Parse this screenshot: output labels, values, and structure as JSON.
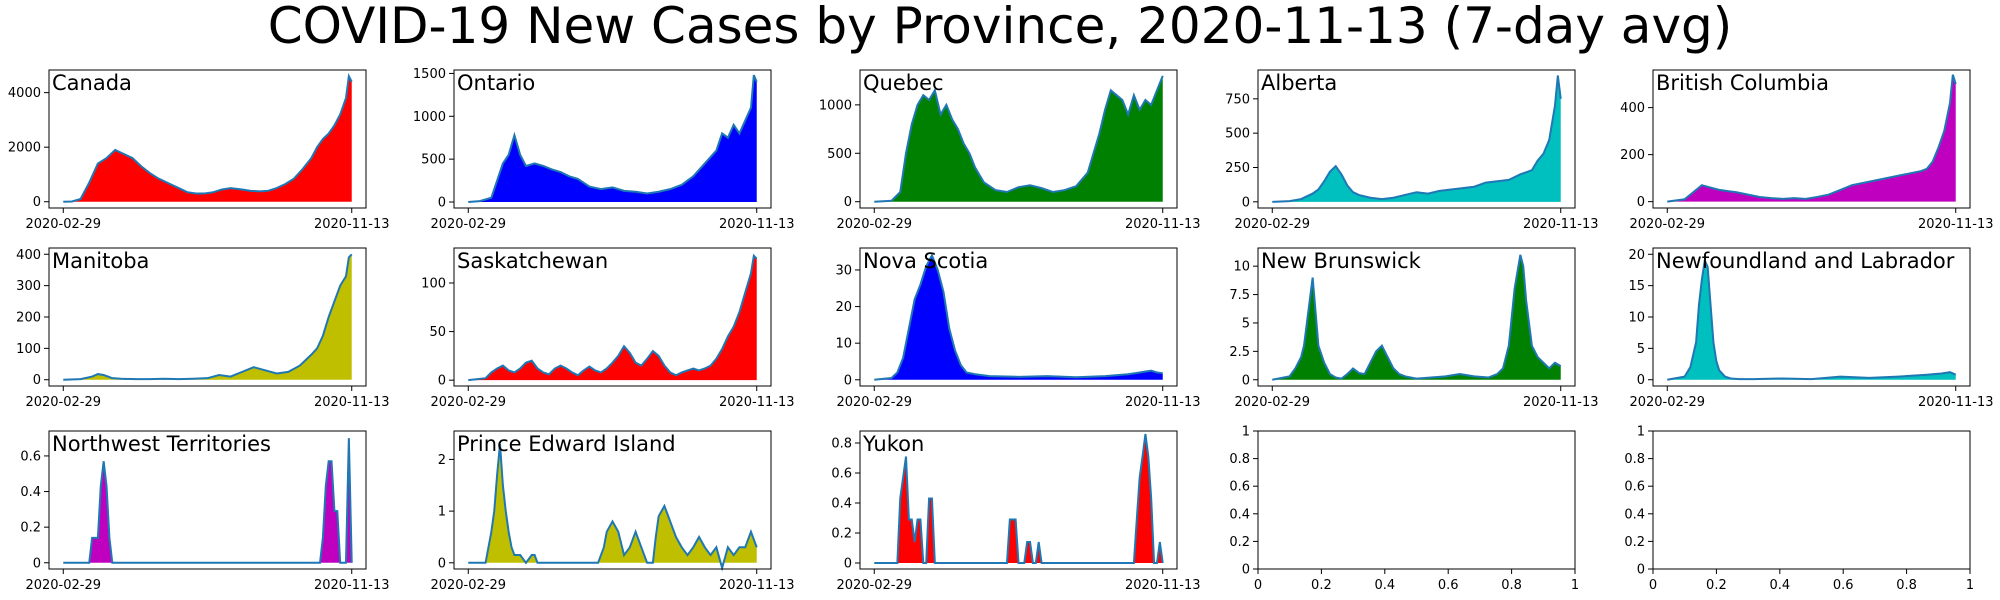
{
  "figure": {
    "title": "COVID-19 New Cases by Province, 2020-11-13 (7-day avg)",
    "colors": {
      "line": "#1f77b4",
      "frame": "#000000",
      "background": "#ffffff"
    }
  },
  "chart_data": [
    {
      "type": "area",
      "label": "Canada",
      "fill": "#ff0000",
      "xlabels": [
        "2020-02-29",
        "2020-11-13"
      ],
      "ylim": [
        -230,
        4830
      ],
      "yticks": [
        0,
        2000,
        4000
      ],
      "x": [
        0,
        0.03,
        0.06,
        0.09,
        0.12,
        0.15,
        0.18,
        0.21,
        0.24,
        0.27,
        0.3,
        0.33,
        0.36,
        0.4,
        0.43,
        0.46,
        0.49,
        0.52,
        0.55,
        0.58,
        0.62,
        0.65,
        0.68,
        0.71,
        0.74,
        0.77,
        0.8,
        0.83,
        0.86,
        0.88,
        0.9,
        0.92,
        0.94,
        0.96,
        0.98,
        0.99,
        1.0
      ],
      "y": [
        0,
        10,
        100,
        700,
        1400,
        1600,
        1900,
        1750,
        1600,
        1300,
        1050,
        850,
        700,
        500,
        350,
        300,
        300,
        350,
        450,
        500,
        450,
        400,
        380,
        400,
        500,
        650,
        850,
        1200,
        1600,
        2000,
        2300,
        2500,
        2800,
        3200,
        3800,
        4600,
        4400
      ]
    },
    {
      "type": "area",
      "label": "Ontario",
      "fill": "#0000ff",
      "xlabels": [
        "2020-02-29",
        "2020-11-13"
      ],
      "ylim": [
        -70,
        1540
      ],
      "yticks": [
        0,
        500,
        1000,
        1500
      ],
      "x": [
        0,
        0.04,
        0.08,
        0.1,
        0.12,
        0.14,
        0.16,
        0.18,
        0.2,
        0.23,
        0.26,
        0.29,
        0.32,
        0.35,
        0.38,
        0.42,
        0.46,
        0.5,
        0.54,
        0.58,
        0.62,
        0.66,
        0.7,
        0.74,
        0.78,
        0.82,
        0.86,
        0.88,
        0.9,
        0.92,
        0.94,
        0.96,
        0.98,
        0.99,
        1.0
      ],
      "y": [
        0,
        10,
        50,
        250,
        450,
        550,
        780,
        550,
        420,
        450,
        420,
        380,
        350,
        300,
        270,
        180,
        150,
        170,
        130,
        120,
        100,
        120,
        150,
        200,
        300,
        450,
        600,
        800,
        750,
        900,
        800,
        950,
        1100,
        1480,
        1400
      ]
    },
    {
      "type": "area",
      "label": "Quebec",
      "fill": "#008000",
      "xlabels": [
        "2020-02-29",
        "2020-11-13"
      ],
      "ylim": [
        -65,
        1360
      ],
      "yticks": [
        0,
        500,
        1000
      ],
      "x": [
        0,
        0.06,
        0.09,
        0.11,
        0.13,
        0.15,
        0.17,
        0.19,
        0.21,
        0.23,
        0.25,
        0.27,
        0.29,
        0.31,
        0.33,
        0.35,
        0.38,
        0.42,
        0.46,
        0.5,
        0.54,
        0.58,
        0.62,
        0.66,
        0.7,
        0.74,
        0.76,
        0.78,
        0.8,
        0.82,
        0.84,
        0.86,
        0.88,
        0.9,
        0.92,
        0.94,
        0.96,
        0.98,
        1.0
      ],
      "y": [
        0,
        10,
        100,
        500,
        800,
        1000,
        1100,
        1050,
        1150,
        900,
        1000,
        850,
        750,
        600,
        500,
        350,
        200,
        120,
        100,
        150,
        170,
        140,
        100,
        120,
        160,
        300,
        500,
        700,
        950,
        1150,
        1100,
        1050,
        900,
        1100,
        950,
        1050,
        1000,
        1150,
        1300
      ]
    },
    {
      "type": "area",
      "label": "Alberta",
      "fill": "#00bfbf",
      "xlabels": [
        "2020-02-29",
        "2020-11-13"
      ],
      "ylim": [
        -45,
        960
      ],
      "yticks": [
        0,
        250,
        500,
        750
      ],
      "x": [
        0,
        0.06,
        0.1,
        0.14,
        0.16,
        0.18,
        0.2,
        0.22,
        0.24,
        0.26,
        0.28,
        0.3,
        0.34,
        0.38,
        0.42,
        0.46,
        0.5,
        0.54,
        0.58,
        0.62,
        0.66,
        0.7,
        0.74,
        0.78,
        0.82,
        0.86,
        0.9,
        0.92,
        0.94,
        0.96,
        0.98,
        0.99,
        1.0
      ],
      "y": [
        0,
        5,
        20,
        60,
        90,
        150,
        220,
        260,
        200,
        120,
        70,
        50,
        30,
        20,
        30,
        50,
        70,
        60,
        80,
        90,
        100,
        110,
        140,
        150,
        160,
        200,
        230,
        300,
        350,
        450,
        700,
        920,
        750
      ]
    },
    {
      "type": "area",
      "label": "British Columbia",
      "fill": "#bf00bf",
      "xlabels": [
        "2020-02-29",
        "2020-11-13"
      ],
      "ylim": [
        -27,
        560
      ],
      "yticks": [
        0,
        200,
        400
      ],
      "x": [
        0,
        0.06,
        0.09,
        0.12,
        0.15,
        0.18,
        0.21,
        0.24,
        0.28,
        0.32,
        0.36,
        0.4,
        0.44,
        0.48,
        0.52,
        0.56,
        0.6,
        0.64,
        0.68,
        0.72,
        0.76,
        0.8,
        0.84,
        0.88,
        0.9,
        0.92,
        0.94,
        0.96,
        0.98,
        0.99,
        1.0
      ],
      "y": [
        0,
        10,
        40,
        70,
        60,
        50,
        45,
        40,
        30,
        20,
        15,
        12,
        15,
        12,
        20,
        30,
        50,
        70,
        80,
        90,
        100,
        110,
        120,
        130,
        140,
        170,
        230,
        300,
        420,
        540,
        500
      ]
    },
    {
      "type": "area",
      "label": "Manitoba",
      "fill": "#bfbf00",
      "xlabels": [
        "2020-02-29",
        "2020-11-13"
      ],
      "ylim": [
        -20,
        420
      ],
      "yticks": [
        0,
        100,
        200,
        300,
        400
      ],
      "x": [
        0,
        0.06,
        0.1,
        0.12,
        0.14,
        0.17,
        0.2,
        0.25,
        0.3,
        0.35,
        0.4,
        0.45,
        0.5,
        0.54,
        0.58,
        0.62,
        0.66,
        0.7,
        0.74,
        0.78,
        0.82,
        0.86,
        0.88,
        0.9,
        0.92,
        0.94,
        0.96,
        0.98,
        0.99,
        1.0
      ],
      "y": [
        0,
        2,
        10,
        18,
        15,
        5,
        3,
        2,
        2,
        3,
        2,
        3,
        5,
        15,
        10,
        25,
        40,
        30,
        20,
        25,
        45,
        80,
        100,
        140,
        200,
        250,
        300,
        330,
        390,
        400
      ]
    },
    {
      "type": "area",
      "label": "Saskatchewan",
      "fill": "#ff0000",
      "xlabels": [
        "2020-02-29",
        "2020-11-13"
      ],
      "ylim": [
        -6,
        136
      ],
      "yticks": [
        0,
        50,
        100
      ],
      "x": [
        0,
        0.06,
        0.08,
        0.1,
        0.12,
        0.14,
        0.16,
        0.18,
        0.2,
        0.22,
        0.24,
        0.26,
        0.28,
        0.3,
        0.32,
        0.34,
        0.36,
        0.38,
        0.4,
        0.42,
        0.44,
        0.46,
        0.48,
        0.5,
        0.52,
        0.54,
        0.56,
        0.58,
        0.6,
        0.62,
        0.64,
        0.66,
        0.68,
        0.7,
        0.72,
        0.74,
        0.76,
        0.78,
        0.8,
        0.82,
        0.84,
        0.86,
        0.88,
        0.9,
        0.92,
        0.94,
        0.96,
        0.98,
        0.99,
        1.0
      ],
      "y": [
        0,
        2,
        8,
        12,
        15,
        10,
        8,
        12,
        18,
        20,
        12,
        8,
        6,
        12,
        15,
        12,
        8,
        5,
        10,
        14,
        10,
        8,
        12,
        18,
        25,
        35,
        28,
        18,
        15,
        22,
        30,
        25,
        15,
        8,
        5,
        8,
        10,
        12,
        10,
        12,
        15,
        22,
        32,
        45,
        55,
        70,
        90,
        110,
        128,
        125
      ]
    },
    {
      "type": "area",
      "label": "Nova Scotia",
      "fill": "#0000ff",
      "xlabels": [
        "2020-02-29",
        "2020-11-13"
      ],
      "ylim": [
        -1.7,
        36
      ],
      "yticks": [
        0,
        10,
        20,
        30
      ],
      "x": [
        0,
        0.06,
        0.08,
        0.1,
        0.12,
        0.14,
        0.16,
        0.18,
        0.2,
        0.22,
        0.24,
        0.26,
        0.28,
        0.3,
        0.32,
        0.35,
        0.4,
        0.5,
        0.6,
        0.7,
        0.8,
        0.88,
        0.92,
        0.96,
        0.98,
        1.0
      ],
      "y": [
        0,
        0.5,
        2,
        6,
        14,
        22,
        26,
        31,
        34,
        30,
        24,
        14,
        8,
        4,
        2,
        1.5,
        1,
        0.8,
        1,
        0.7,
        1,
        1.5,
        2,
        2.5,
        2,
        1.8
      ]
    },
    {
      "type": "area",
      "label": "New Brunswick",
      "fill": "#008000",
      "xlabels": [
        "2020-02-29",
        "2020-11-13"
      ],
      "ylim": [
        -0.55,
        11.6
      ],
      "yticks": [
        0.0,
        2.5,
        5.0,
        7.5,
        10.0
      ],
      "x": [
        0,
        0.06,
        0.08,
        0.1,
        0.11,
        0.12,
        0.13,
        0.14,
        0.15,
        0.16,
        0.18,
        0.2,
        0.22,
        0.24,
        0.26,
        0.28,
        0.3,
        0.32,
        0.34,
        0.36,
        0.38,
        0.4,
        0.42,
        0.44,
        0.46,
        0.48,
        0.5,
        0.55,
        0.6,
        0.65,
        0.7,
        0.75,
        0.78,
        0.8,
        0.82,
        0.84,
        0.86,
        0.87,
        0.88,
        0.9,
        0.92,
        0.94,
        0.96,
        0.98,
        1.0
      ],
      "y": [
        0,
        0.3,
        1,
        2,
        3,
        5,
        7,
        9,
        6,
        3,
        1.5,
        0.5,
        0.2,
        0.1,
        0.5,
        1,
        0.6,
        0.5,
        1.5,
        2.5,
        3,
        2,
        1,
        0.5,
        0.3,
        0.2,
        0.1,
        0.2,
        0.3,
        0.5,
        0.3,
        0.2,
        0.5,
        1,
        3,
        8,
        11,
        10,
        7,
        3,
        2,
        1.5,
        1,
        1.5,
        1.2
      ]
    },
    {
      "type": "area",
      "label": "Newfoundland and Labrador",
      "fill": "#00bfbf",
      "xlabels": [
        "2020-02-29",
        "2020-11-13"
      ],
      "ylim": [
        -1,
        21
      ],
      "yticks": [
        0,
        5,
        10,
        15,
        20
      ],
      "x": [
        0,
        0.06,
        0.08,
        0.1,
        0.11,
        0.12,
        0.13,
        0.14,
        0.15,
        0.16,
        0.17,
        0.18,
        0.2,
        0.22,
        0.25,
        0.3,
        0.4,
        0.5,
        0.6,
        0.7,
        0.8,
        0.9,
        0.95,
        0.98,
        1.0
      ],
      "y": [
        0,
        0.5,
        2,
        6,
        12,
        16,
        19,
        18,
        12,
        6,
        3,
        1.5,
        0.5,
        0.2,
        0.1,
        0.1,
        0.2,
        0.1,
        0.5,
        0.3,
        0.5,
        0.8,
        1,
        1.2,
        0.8
      ]
    },
    {
      "type": "area",
      "label": "Northwest Territories",
      "fill": "#bf00bf",
      "xlabels": [
        "2020-02-29",
        "2020-11-13"
      ],
      "ylim": [
        -0.035,
        0.74
      ],
      "yticks": [
        0.0,
        0.2,
        0.4,
        0.6
      ],
      "x": [
        0,
        0.08,
        0.09,
        0.1,
        0.12,
        0.13,
        0.14,
        0.15,
        0.16,
        0.17,
        0.18,
        0.88,
        0.89,
        0.9,
        0.91,
        0.92,
        0.93,
        0.94,
        0.95,
        0.96,
        0.97,
        0.975,
        0.98,
        0.99,
        1.0
      ],
      "y": [
        0,
        0,
        0,
        0.14,
        0.14,
        0.43,
        0.57,
        0.43,
        0.14,
        0,
        0,
        0,
        0,
        0.14,
        0.43,
        0.57,
        0.57,
        0.29,
        0.29,
        0,
        0,
        0,
        0,
        0.7,
        0
      ]
    },
    {
      "type": "area",
      "label": "Prince Edward Island",
      "fill": "#bfbf00",
      "xlabels": [
        "2020-02-29",
        "2020-11-13"
      ],
      "ylim": [
        -0.12,
        2.55
      ],
      "yticks": [
        0,
        1,
        2
      ],
      "x": [
        0,
        0.06,
        0.08,
        0.09,
        0.1,
        0.11,
        0.12,
        0.13,
        0.14,
        0.15,
        0.16,
        0.18,
        0.2,
        0.22,
        0.23,
        0.24,
        0.26,
        0.3,
        0.4,
        0.45,
        0.47,
        0.48,
        0.5,
        0.52,
        0.54,
        0.56,
        0.58,
        0.6,
        0.62,
        0.64,
        0.65,
        0.66,
        0.68,
        0.7,
        0.72,
        0.74,
        0.76,
        0.78,
        0.8,
        0.82,
        0.84,
        0.86,
        0.88,
        0.9,
        0.92,
        0.94,
        0.96,
        0.98,
        1.0
      ],
      "y": [
        0,
        0,
        0.6,
        1.0,
        1.7,
        2.3,
        1.5,
        1.0,
        0.6,
        0.3,
        0.15,
        0.15,
        0,
        0.15,
        0.15,
        0,
        0,
        0,
        0,
        0,
        0.3,
        0.6,
        0.8,
        0.6,
        0.15,
        0.3,
        0.6,
        0.3,
        0,
        0,
        0.5,
        0.9,
        1.1,
        0.8,
        0.5,
        0.3,
        0.15,
        0.3,
        0.5,
        0.3,
        0.15,
        0.3,
        -0.1,
        0.3,
        0.15,
        0.3,
        0.3,
        0.6,
        0.3
      ]
    },
    {
      "type": "area",
      "label": "Yukon",
      "fill": "#ff0000",
      "xlabels": [
        "2020-02-29",
        "2020-11-13"
      ],
      "ylim": [
        -0.04,
        0.88
      ],
      "yticks": [
        0.0,
        0.2,
        0.4,
        0.6,
        0.8
      ],
      "x": [
        0,
        0.08,
        0.09,
        0.1,
        0.11,
        0.12,
        0.13,
        0.14,
        0.15,
        0.16,
        0.17,
        0.18,
        0.19,
        0.2,
        0.21,
        0.22,
        0.23,
        0.24,
        0.46,
        0.47,
        0.49,
        0.5,
        0.52,
        0.53,
        0.54,
        0.55,
        0.56,
        0.57,
        0.58,
        0.9,
        0.91,
        0.92,
        0.93,
        0.94,
        0.95,
        0.96,
        0.97,
        0.98,
        0.99,
        1.0
      ],
      "y": [
        0,
        0,
        0.43,
        0.57,
        0.71,
        0.29,
        0.29,
        0.14,
        0.29,
        0.29,
        0,
        0,
        0.43,
        0.43,
        0,
        0,
        0,
        0,
        0,
        0.29,
        0.29,
        0,
        0,
        0.14,
        0.14,
        0,
        0,
        0.14,
        0,
        0,
        0.29,
        0.57,
        0.71,
        0.86,
        0.71,
        0.43,
        0,
        0,
        0.14,
        0
      ]
    },
    {
      "type": "area",
      "label": "",
      "empty": true,
      "xlim": [
        0,
        1
      ],
      "ylim": [
        0,
        1
      ],
      "xticks": [
        0.0,
        0.2,
        0.4,
        0.6,
        0.8,
        1.0
      ],
      "yticks": [
        0.0,
        0.2,
        0.4,
        0.6,
        0.8,
        1.0
      ]
    },
    {
      "type": "area",
      "label": "",
      "empty": true,
      "xlim": [
        0,
        1
      ],
      "ylim": [
        0,
        1
      ],
      "xticks": [
        0.0,
        0.2,
        0.4,
        0.6,
        0.8,
        1.0
      ],
      "yticks": [
        0.0,
        0.2,
        0.4,
        0.6,
        0.8,
        1.0
      ]
    }
  ]
}
